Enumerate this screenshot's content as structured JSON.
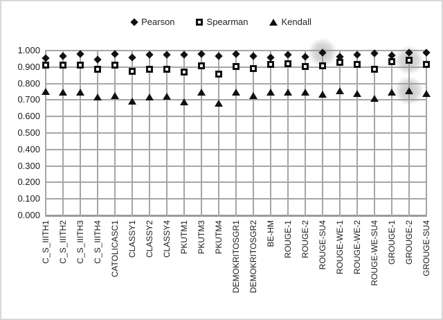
{
  "figure": {
    "background": "#ffffff",
    "border_color": "#d8d8d8"
  },
  "legend": {
    "items": [
      {
        "label": "Pearson",
        "marker": "diamond-icon"
      },
      {
        "label": "Spearman",
        "marker": "open-square-icon"
      },
      {
        "label": "Kendall",
        "marker": "triangle-icon"
      }
    ]
  },
  "chart_data": {
    "type": "scatter",
    "title": "",
    "xlabel": "",
    "ylabel": "",
    "grid": true,
    "legend_position": "top-center",
    "ylim": [
      0,
      1
    ],
    "ytick_step": 0.1,
    "ytick_labels": [
      "1.000",
      "0.900",
      "0.800",
      "0.700",
      "0.600",
      "0.500",
      "0.400",
      "0.300",
      "0.200",
      "0.100",
      "0.000"
    ],
    "categories": [
      "C_S_IIITH1",
      "C_S_IIITH2",
      "C_S_IIITH3",
      "C_S_IIITH4",
      "CATOLICASC1",
      "CLASSY1",
      "CLASSY2",
      "CLASSY4",
      "PKUTM1",
      "PKUTM3",
      "PKUTM4",
      "DEMOKRITOSGR1",
      "DEMOKRITOSGR2",
      "BE-HM",
      "ROUGE-1",
      "ROUGE-2",
      "ROUGE-SU4",
      "ROUGE-WE-1",
      "ROUGE-WE-2",
      "ROUGE-WE-SU4",
      "GROUGE-1",
      "GROUGE-2",
      "GROUGE-SU4"
    ],
    "series": [
      {
        "name": "Pearson",
        "marker": "diamond",
        "values": [
          0.955,
          0.965,
          0.978,
          0.945,
          0.978,
          0.96,
          0.974,
          0.974,
          0.974,
          0.977,
          0.966,
          0.977,
          0.966,
          0.957,
          0.974,
          0.964,
          0.986,
          0.964,
          0.974,
          0.983,
          0.971,
          0.986,
          0.986
        ]
      },
      {
        "name": "Spearman",
        "marker": "osquare",
        "values": [
          0.91,
          0.913,
          0.91,
          0.886,
          0.91,
          0.876,
          0.887,
          0.886,
          0.868,
          0.907,
          0.858,
          0.905,
          0.889,
          0.917,
          0.921,
          0.903,
          0.907,
          0.927,
          0.914,
          0.886,
          0.932,
          0.941,
          0.914
        ]
      },
      {
        "name": "Kendall",
        "marker": "triangle",
        "values": [
          0.751,
          0.748,
          0.75,
          0.718,
          0.726,
          0.694,
          0.718,
          0.723,
          0.69,
          0.748,
          0.682,
          0.748,
          0.725,
          0.748,
          0.748,
          0.748,
          0.735,
          0.755,
          0.74,
          0.712,
          0.75,
          0.757,
          0.74
        ]
      }
    ],
    "highlights": [
      {
        "category": "ROUGE-SU4",
        "series": "Pearson"
      },
      {
        "category": "GROUGE-2",
        "series": "Spearman"
      },
      {
        "category": "GROUGE-2",
        "series": "Kendall"
      }
    ],
    "colors": {
      "marker": "#111111",
      "gridline": "#a6a6a6",
      "text": "#1a1a1a",
      "highlight": "#919191"
    }
  }
}
